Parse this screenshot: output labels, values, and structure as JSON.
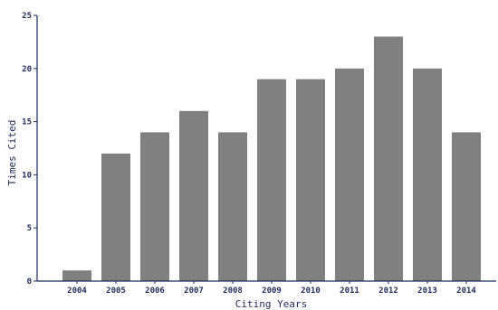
{
  "chart_data": {
    "type": "bar",
    "title": "",
    "xlabel": "Citing Years",
    "ylabel": "Times Cited",
    "categories": [
      "2004",
      "2005",
      "2006",
      "2007",
      "2008",
      "2009",
      "2010",
      "2011",
      "2012",
      "2013",
      "2014"
    ],
    "values": [
      1,
      12,
      14,
      16,
      14,
      19,
      19,
      20,
      23,
      20,
      14
    ],
    "ylim": [
      0,
      25
    ],
    "yticks": [
      0,
      5,
      10,
      15,
      20,
      25
    ],
    "grid": false,
    "legend": "none",
    "colors": {
      "bar": "#808080",
      "axis": "#1f2a5c",
      "text": "#1f2a5c"
    }
  }
}
